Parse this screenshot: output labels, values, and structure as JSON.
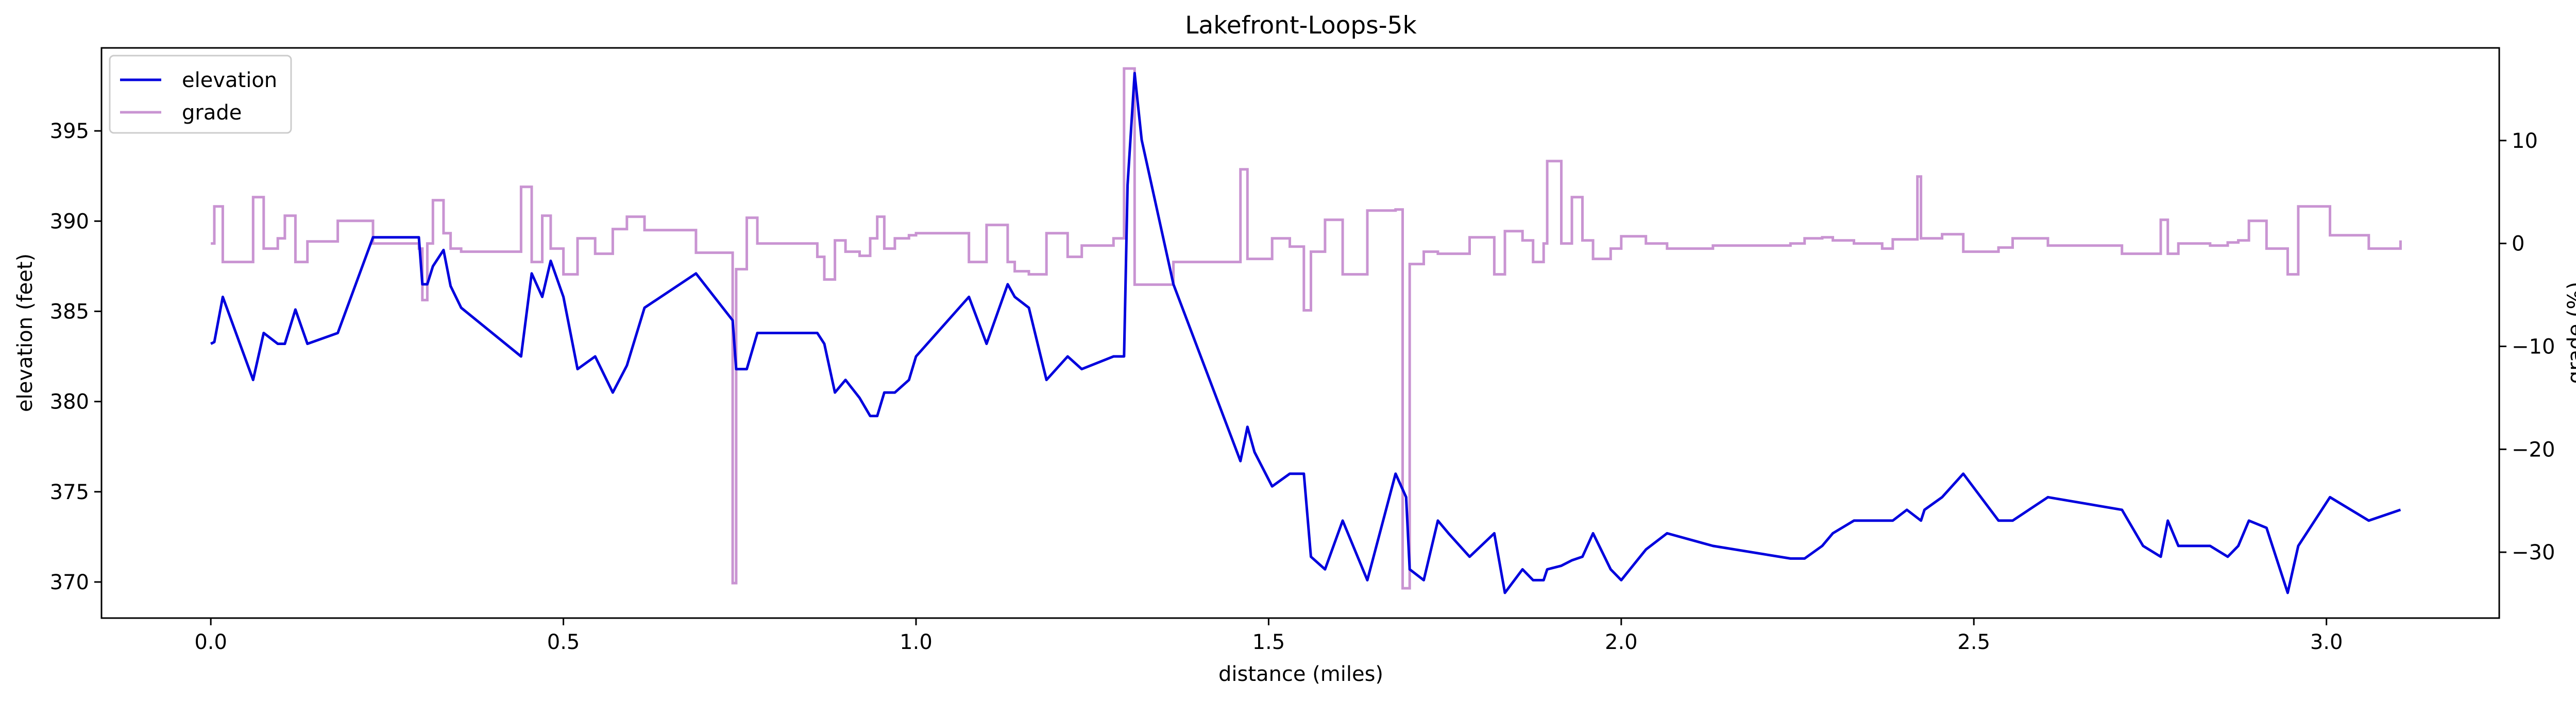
{
  "chart_data": {
    "type": "line",
    "title": "Lakefront-Loops-5k",
    "xlabel": "distance (miles)",
    "ylabel": "elevation (feet)",
    "y2label": "grade (%)",
    "xlim": [
      -0.155,
      3.245
    ],
    "ylim": [
      368.0,
      399.6
    ],
    "y2lim": [
      -36.4,
      19.0
    ],
    "xticks": [
      "0.0",
      "0.5",
      "1.0",
      "1.5",
      "2.0",
      "2.5",
      "3.0"
    ],
    "yticks": [
      "370",
      "375",
      "380",
      "385",
      "390",
      "395"
    ],
    "y2ticks": [
      "−30",
      "−20",
      "−10",
      "0",
      "10"
    ],
    "legend_position": "upper-left",
    "grid": false,
    "series": [
      {
        "name": "elevation",
        "axis": "left",
        "color": "#0000dd",
        "points": [
          [
            0.0,
            383.2
          ],
          [
            0.005,
            383.3
          ],
          [
            0.017,
            385.8
          ],
          [
            0.06,
            381.2
          ],
          [
            0.075,
            383.8
          ],
          [
            0.095,
            383.2
          ],
          [
            0.105,
            383.2
          ],
          [
            0.12,
            385.1
          ],
          [
            0.137,
            383.2
          ],
          [
            0.18,
            383.8
          ],
          [
            0.23,
            389.1
          ],
          [
            0.295,
            389.1
          ],
          [
            0.3,
            386.5
          ],
          [
            0.307,
            386.5
          ],
          [
            0.315,
            387.5
          ],
          [
            0.33,
            388.4
          ],
          [
            0.34,
            386.4
          ],
          [
            0.355,
            385.2
          ],
          [
            0.44,
            382.5
          ],
          [
            0.455,
            387.1
          ],
          [
            0.47,
            385.8
          ],
          [
            0.482,
            387.8
          ],
          [
            0.5,
            385.8
          ],
          [
            0.52,
            381.8
          ],
          [
            0.545,
            382.5
          ],
          [
            0.57,
            380.5
          ],
          [
            0.59,
            382.0
          ],
          [
            0.615,
            385.2
          ],
          [
            0.688,
            387.1
          ],
          [
            0.74,
            384.5
          ],
          [
            0.745,
            381.8
          ],
          [
            0.76,
            381.8
          ],
          [
            0.775,
            383.8
          ],
          [
            0.86,
            383.8
          ],
          [
            0.87,
            383.2
          ],
          [
            0.885,
            380.5
          ],
          [
            0.9,
            381.2
          ],
          [
            0.92,
            380.2
          ],
          [
            0.935,
            379.2
          ],
          [
            0.945,
            379.2
          ],
          [
            0.955,
            380.5
          ],
          [
            0.97,
            380.5
          ],
          [
            0.99,
            381.2
          ],
          [
            1.0,
            382.5
          ],
          [
            1.075,
            385.8
          ],
          [
            1.1,
            383.2
          ],
          [
            1.13,
            386.5
          ],
          [
            1.14,
            385.8
          ],
          [
            1.16,
            385.2
          ],
          [
            1.185,
            381.2
          ],
          [
            1.215,
            382.5
          ],
          [
            1.235,
            381.8
          ],
          [
            1.28,
            382.5
          ],
          [
            1.295,
            382.5
          ],
          [
            1.3,
            392.0
          ],
          [
            1.31,
            398.2
          ],
          [
            1.32,
            394.5
          ],
          [
            1.365,
            386.5
          ],
          [
            1.46,
            376.7
          ],
          [
            1.47,
            378.6
          ],
          [
            1.48,
            377.2
          ],
          [
            1.505,
            375.3
          ],
          [
            1.53,
            376.0
          ],
          [
            1.55,
            376.0
          ],
          [
            1.56,
            371.4
          ],
          [
            1.58,
            370.7
          ],
          [
            1.605,
            373.4
          ],
          [
            1.64,
            370.1
          ],
          [
            1.68,
            376.0
          ],
          [
            1.695,
            374.7
          ],
          [
            1.7,
            370.7
          ],
          [
            1.72,
            370.1
          ],
          [
            1.74,
            373.4
          ],
          [
            1.755,
            372.7
          ],
          [
            1.785,
            371.4
          ],
          [
            1.82,
            372.7
          ],
          [
            1.835,
            369.4
          ],
          [
            1.86,
            370.7
          ],
          [
            1.875,
            370.1
          ],
          [
            1.89,
            370.1
          ],
          [
            1.895,
            370.7
          ],
          [
            1.915,
            370.9
          ],
          [
            1.93,
            371.2
          ],
          [
            1.945,
            371.4
          ],
          [
            1.96,
            372.7
          ],
          [
            1.985,
            370.7
          ],
          [
            2.0,
            370.1
          ],
          [
            2.035,
            371.8
          ],
          [
            2.065,
            372.7
          ],
          [
            2.13,
            372.0
          ],
          [
            2.24,
            371.3
          ],
          [
            2.26,
            371.3
          ],
          [
            2.285,
            372.0
          ],
          [
            2.3,
            372.7
          ],
          [
            2.33,
            373.4
          ],
          [
            2.37,
            373.4
          ],
          [
            2.385,
            373.4
          ],
          [
            2.405,
            374.0
          ],
          [
            2.425,
            373.4
          ],
          [
            2.43,
            374.0
          ],
          [
            2.455,
            374.7
          ],
          [
            2.485,
            376.0
          ],
          [
            2.51,
            374.7
          ],
          [
            2.535,
            373.4
          ],
          [
            2.555,
            373.4
          ],
          [
            2.605,
            374.7
          ],
          [
            2.71,
            374.0
          ],
          [
            2.74,
            372.0
          ],
          [
            2.765,
            371.4
          ],
          [
            2.775,
            373.4
          ],
          [
            2.79,
            372.0
          ],
          [
            2.835,
            372.0
          ],
          [
            2.86,
            371.4
          ],
          [
            2.875,
            372.0
          ],
          [
            2.89,
            373.4
          ],
          [
            2.915,
            373.0
          ],
          [
            2.945,
            369.4
          ],
          [
            2.96,
            372.0
          ],
          [
            3.005,
            374.7
          ],
          [
            3.06,
            373.4
          ],
          [
            3.105,
            374.0
          ]
        ]
      },
      {
        "name": "grade",
        "axis": "right",
        "color": "#c994d2",
        "step_end": 3.105,
        "points": [
          [
            0.0,
            0.0
          ],
          [
            0.005,
            3.6
          ],
          [
            0.017,
            -1.8
          ],
          [
            0.06,
            4.5
          ],
          [
            0.075,
            -0.5
          ],
          [
            0.095,
            0.5
          ],
          [
            0.105,
            2.7
          ],
          [
            0.12,
            -1.8
          ],
          [
            0.137,
            0.2
          ],
          [
            0.18,
            2.2
          ],
          [
            0.23,
            0.0
          ],
          [
            0.295,
            -0.5
          ],
          [
            0.3,
            -5.5
          ],
          [
            0.307,
            0.0
          ],
          [
            0.315,
            4.2
          ],
          [
            0.33,
            1.0
          ],
          [
            0.34,
            -0.5
          ],
          [
            0.355,
            -0.8
          ],
          [
            0.44,
            5.5
          ],
          [
            0.455,
            -1.8
          ],
          [
            0.47,
            2.7
          ],
          [
            0.482,
            -0.5
          ],
          [
            0.5,
            -3.0
          ],
          [
            0.52,
            0.5
          ],
          [
            0.545,
            -1.0
          ],
          [
            0.57,
            1.4
          ],
          [
            0.59,
            2.6
          ],
          [
            0.615,
            1.3
          ],
          [
            0.688,
            -0.9
          ],
          [
            0.74,
            -33.0
          ],
          [
            0.745,
            -2.5
          ],
          [
            0.76,
            2.5
          ],
          [
            0.775,
            0.0
          ],
          [
            0.86,
            -1.3
          ],
          [
            0.87,
            -3.5
          ],
          [
            0.885,
            0.3
          ],
          [
            0.9,
            -0.8
          ],
          [
            0.92,
            -1.2
          ],
          [
            0.935,
            0.5
          ],
          [
            0.945,
            2.6
          ],
          [
            0.955,
            -0.5
          ],
          [
            0.97,
            0.5
          ],
          [
            0.99,
            0.8
          ],
          [
            1.0,
            1.0
          ],
          [
            1.075,
            -1.8
          ],
          [
            1.1,
            1.8
          ],
          [
            1.13,
            -1.8
          ],
          [
            1.14,
            -2.7
          ],
          [
            1.16,
            -3.0
          ],
          [
            1.185,
            1.0
          ],
          [
            1.215,
            -1.3
          ],
          [
            1.235,
            -0.2
          ],
          [
            1.28,
            0.5
          ],
          [
            1.295,
            17.0
          ],
          [
            1.31,
            -4.0
          ],
          [
            1.365,
            -1.8
          ],
          [
            1.46,
            7.2
          ],
          [
            1.47,
            -1.5
          ],
          [
            1.48,
            -1.5
          ],
          [
            1.505,
            0.5
          ],
          [
            1.53,
            -0.3
          ],
          [
            1.55,
            -6.5
          ],
          [
            1.56,
            -0.8
          ],
          [
            1.58,
            2.3
          ],
          [
            1.605,
            -3.0
          ],
          [
            1.64,
            3.2
          ],
          [
            1.68,
            3.3
          ],
          [
            1.69,
            -33.5
          ],
          [
            1.7,
            -2.0
          ],
          [
            1.72,
            -0.8
          ],
          [
            1.74,
            -1.0
          ],
          [
            1.755,
            -1.0
          ],
          [
            1.785,
            0.6
          ],
          [
            1.82,
            -3.0
          ],
          [
            1.835,
            1.2
          ],
          [
            1.86,
            0.3
          ],
          [
            1.875,
            -1.8
          ],
          [
            1.89,
            0.0
          ],
          [
            1.895,
            8.0
          ],
          [
            1.915,
            0.0
          ],
          [
            1.93,
            4.5
          ],
          [
            1.945,
            0.3
          ],
          [
            1.96,
            -1.5
          ],
          [
            1.985,
            -0.5
          ],
          [
            2.0,
            0.7
          ],
          [
            2.035,
            0.0
          ],
          [
            2.065,
            -0.5
          ],
          [
            2.13,
            -0.2
          ],
          [
            2.24,
            0.0
          ],
          [
            2.26,
            0.5
          ],
          [
            2.285,
            0.6
          ],
          [
            2.3,
            0.3
          ],
          [
            2.33,
            0.0
          ],
          [
            2.37,
            -0.5
          ],
          [
            2.385,
            0.4
          ],
          [
            2.405,
            0.4
          ],
          [
            2.42,
            6.5
          ],
          [
            2.425,
            0.5
          ],
          [
            2.43,
            0.5
          ],
          [
            2.455,
            0.9
          ],
          [
            2.485,
            -0.8
          ],
          [
            2.51,
            -0.8
          ],
          [
            2.535,
            -0.4
          ],
          [
            2.555,
            0.5
          ],
          [
            2.605,
            -0.2
          ],
          [
            2.71,
            -1.0
          ],
          [
            2.74,
            -1.0
          ],
          [
            2.765,
            2.3
          ],
          [
            2.775,
            -1.0
          ],
          [
            2.79,
            0.0
          ],
          [
            2.835,
            -0.2
          ],
          [
            2.86,
            0.1
          ],
          [
            2.875,
            0.3
          ],
          [
            2.89,
            2.2
          ],
          [
            2.915,
            -0.5
          ],
          [
            2.945,
            -3.0
          ],
          [
            2.96,
            3.6
          ],
          [
            3.005,
            0.8
          ],
          [
            3.06,
            -0.5
          ],
          [
            3.105,
            0.3
          ]
        ]
      }
    ]
  }
}
